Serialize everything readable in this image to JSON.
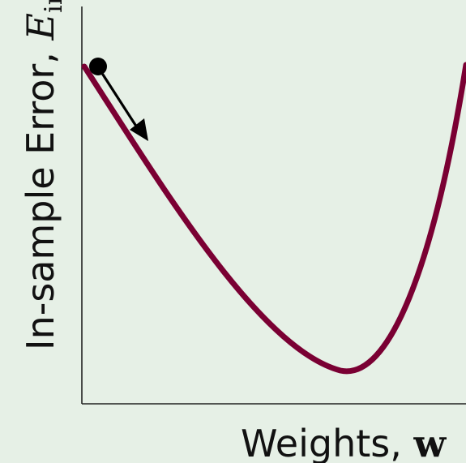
{
  "labels": {
    "y_text": "In-sample Error, ",
    "y_symbol": "E",
    "y_subscript": "in",
    "x_text": "Weights, ",
    "x_symbol": "w"
  },
  "colors": {
    "background": "#e6f0e6",
    "curve": "#7a0033",
    "axes": "#222222",
    "ball": "#000000",
    "arrow": "#000000"
  },
  "icons": {
    "ball": "circle",
    "arrow": "arrow-down-right"
  }
}
